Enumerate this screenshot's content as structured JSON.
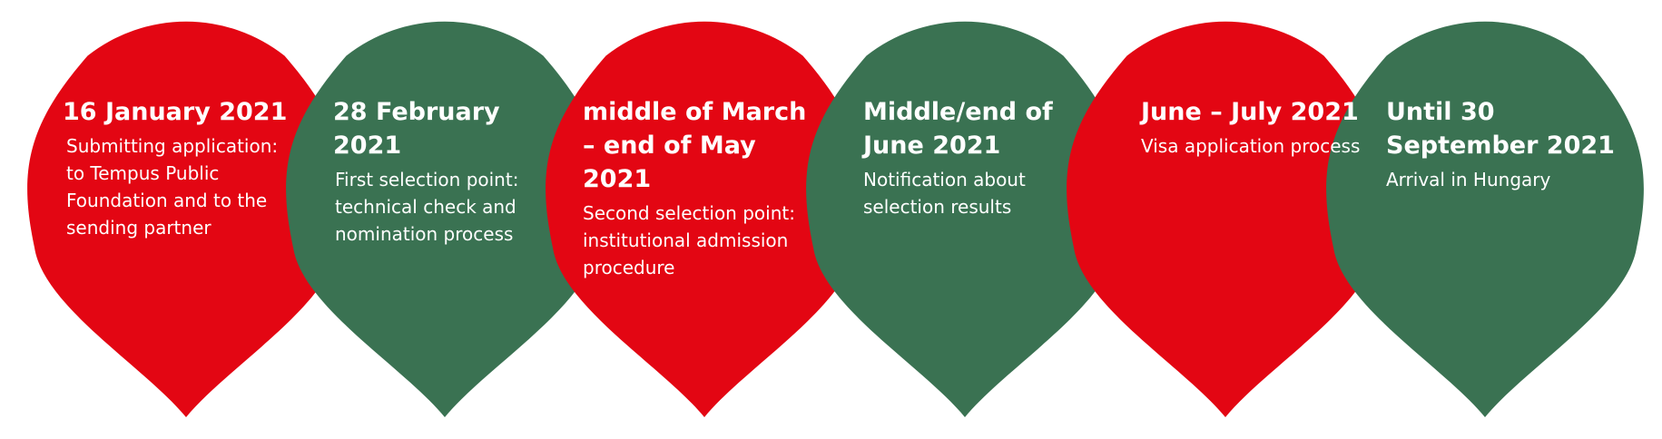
{
  "colors": {
    "red": "#e30613",
    "green": "#3a7252",
    "text": "#ffffff"
  },
  "milestones": [
    {
      "color": "red",
      "date": "16 January 2021",
      "description": "Submitting application: to Tempus Public Foundation and to the sending partner"
    },
    {
      "color": "green",
      "date": "28 February 2021",
      "description": "First selection point: technical check and nomination process"
    },
    {
      "color": "red",
      "date": "middle of March – end of May 2021",
      "description": "Second selection point: institutional admission procedure"
    },
    {
      "color": "green",
      "date": "Middle/end of June 2021",
      "description": "Notification about selection results"
    },
    {
      "color": "red",
      "date": "June – July 2021",
      "description": "Visa application process"
    },
    {
      "color": "green",
      "date": "Until 30 September 2021",
      "description": "Arrival in Hungary"
    }
  ]
}
